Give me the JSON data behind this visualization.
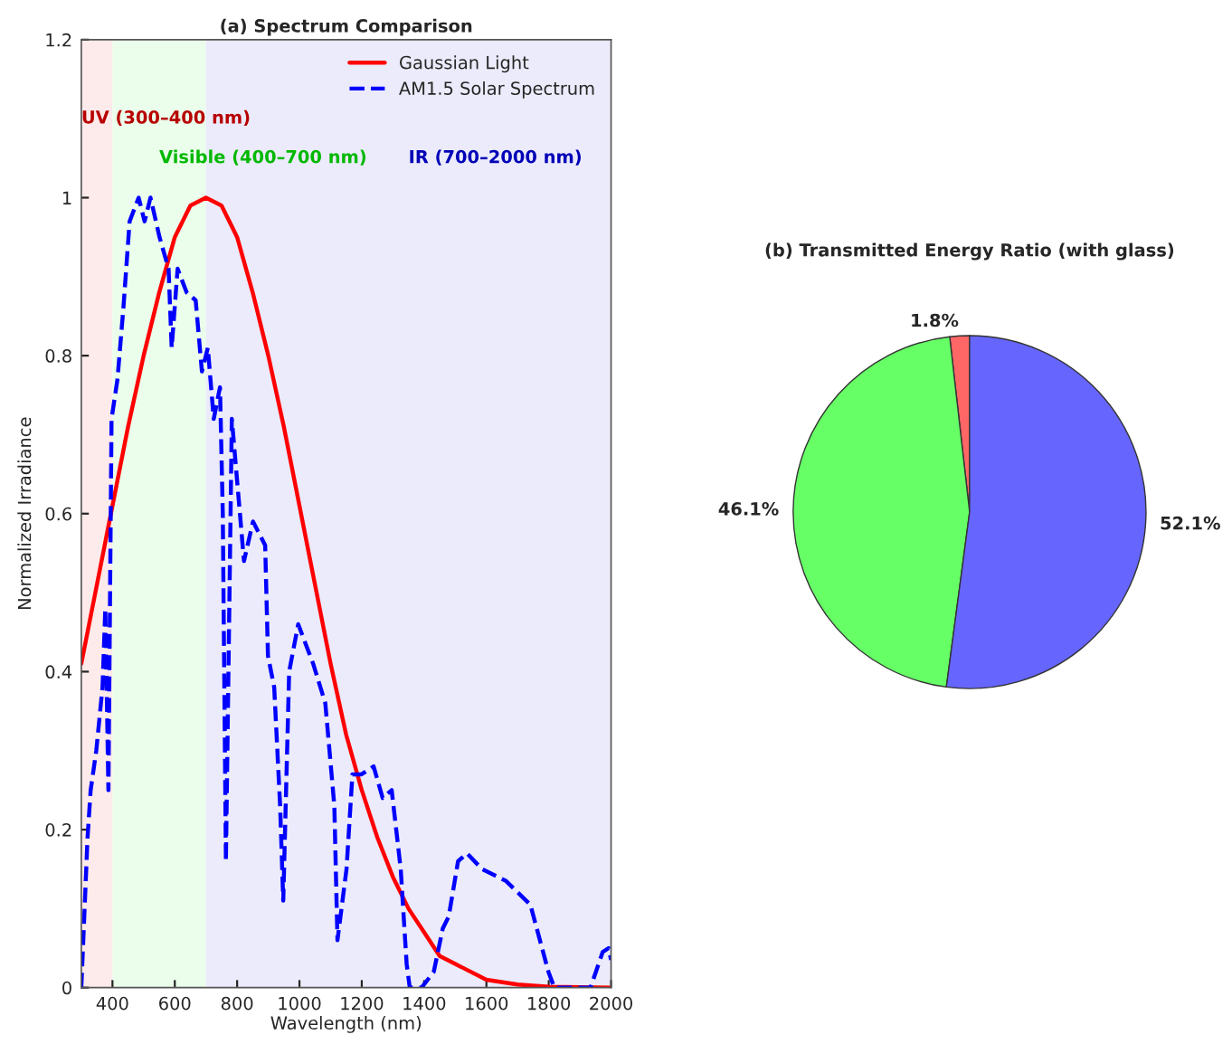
{
  "chart_data": [
    {
      "type": "line",
      "title": "(a) Spectrum Comparison",
      "xlabel": "Wavelength (nm)",
      "ylabel": "Normalized Irradiance",
      "xlim": [
        300,
        2000
      ],
      "xticks": [
        400,
        600,
        800,
        1000,
        1200,
        1400,
        1600,
        1800,
        2000
      ],
      "ylim": [
        0,
        1.2
      ],
      "yticks": [
        0,
        0.2,
        0.4,
        0.6,
        0.8,
        1,
        1.2
      ],
      "grid": false,
      "legend": "top right",
      "bands": [
        {
          "axis": "x",
          "from": 300,
          "to": 400,
          "label": "UV (300–400 nm)",
          "color": "#fdeaea"
        },
        {
          "axis": "x",
          "from": 400,
          "to": 700,
          "label": "Visible (400–700 nm)",
          "color": "#ebfdeb"
        },
        {
          "axis": "x",
          "from": 700,
          "to": 2000,
          "label": "IR (700–2000 nm)",
          "color": "#ebebfb"
        }
      ],
      "series": [
        {
          "name": "Gaussian Light",
          "color": "#ff0000",
          "line_style": "solid",
          "x": [
            300,
            350,
            400,
            450,
            500,
            550,
            600,
            650,
            700,
            750,
            800,
            850,
            900,
            950,
            1000,
            1050,
            1100,
            1150,
            1200,
            1250,
            1300,
            1350,
            1400,
            1450,
            1500,
            1600,
            1700,
            1800,
            2000
          ],
          "values": [
            0.41,
            0.51,
            0.61,
            0.71,
            0.8,
            0.88,
            0.95,
            0.99,
            1.0,
            0.99,
            0.95,
            0.88,
            0.8,
            0.71,
            0.61,
            0.51,
            0.41,
            0.32,
            0.25,
            0.19,
            0.14,
            0.1,
            0.07,
            0.04,
            0.03,
            0.01,
            0.004,
            0.001,
            0
          ]
        },
        {
          "name": "AM1.5 Solar Spectrum",
          "color": "#0000ff",
          "line_style": "dashed",
          "x": [
            300,
            320,
            330,
            348,
            368,
            377,
            387,
            397,
            416,
            435,
            455,
            484,
            503,
            522,
            551,
            580,
            590,
            609,
            638,
            667,
            687,
            706,
            725,
            745,
            754,
            764,
            783,
            822,
            851,
            890,
            899,
            919,
            938,
            948,
            967,
            996,
            1044,
            1083,
            1112,
            1122,
            1151,
            1170,
            1199,
            1238,
            1267,
            1296,
            1325,
            1344,
            1354,
            1392,
            1431,
            1460,
            1479,
            1509,
            1538,
            1586,
            1663,
            1741,
            1799,
            1818,
            1934,
            1973,
            1992,
            2000
          ],
          "values": [
            0,
            0.19,
            0.25,
            0.3,
            0.38,
            0.48,
            0.25,
            0.72,
            0.77,
            0.86,
            0.97,
            1.0,
            0.97,
            1.0,
            0.95,
            0.91,
            0.81,
            0.91,
            0.88,
            0.87,
            0.78,
            0.81,
            0.72,
            0.76,
            0.6,
            0.16,
            0.72,
            0.54,
            0.59,
            0.56,
            0.42,
            0.38,
            0.23,
            0.11,
            0.4,
            0.46,
            0.41,
            0.36,
            0.23,
            0.06,
            0.15,
            0.27,
            0.27,
            0.28,
            0.24,
            0.25,
            0.15,
            0.03,
            0,
            0,
            0.02,
            0.075,
            0.09,
            0.16,
            0.17,
            0.15,
            0.135,
            0.105,
            0.02,
            0,
            0,
            0.045,
            0.05,
            0.035
          ]
        }
      ]
    },
    {
      "type": "pie",
      "title": "(b) Transmitted Energy Ratio (with glass)",
      "categories": [
        null,
        null,
        null
      ],
      "values": [
        1.8,
        46.1,
        52.1
      ],
      "colors": [
        "#ff6666",
        "#66ff66",
        "#6666ff"
      ],
      "value_labels": [
        "1.8%",
        "46.1%",
        "52.1%"
      ]
    }
  ]
}
